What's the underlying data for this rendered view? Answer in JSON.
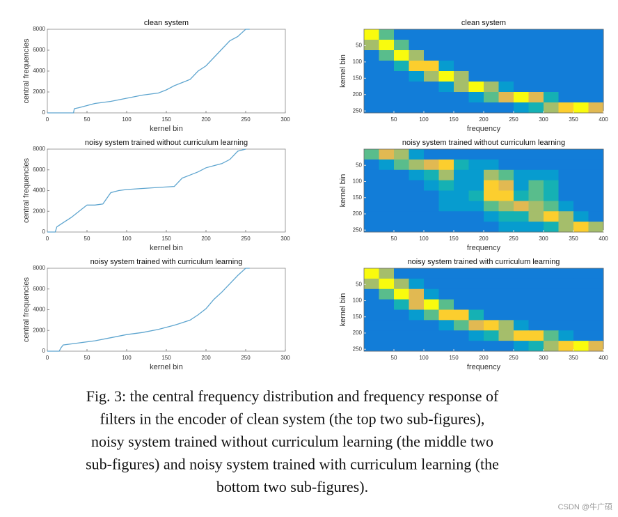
{
  "chart_data": [
    {
      "type": "line",
      "title": "clean system",
      "xlabel": "kernel bin",
      "ylabel": "central frequencies",
      "color": "#5ea5cf",
      "x": [
        0,
        33,
        34,
        40,
        50,
        60,
        80,
        100,
        120,
        140,
        150,
        160,
        170,
        180,
        190,
        200,
        210,
        220,
        230,
        240,
        250,
        255
      ],
      "values": [
        0,
        0,
        400,
        500,
        700,
        900,
        1100,
        1400,
        1700,
        1900,
        2200,
        2600,
        2900,
        3200,
        4000,
        4500,
        5300,
        6100,
        6900,
        7300,
        8000,
        8000
      ],
      "xlim": [
        0,
        300
      ],
      "xticks": [
        0,
        50,
        100,
        150,
        200,
        250,
        300
      ],
      "ylim": [
        0,
        8000
      ],
      "yticks": [
        0,
        2000,
        4000,
        6000,
        8000
      ]
    },
    {
      "type": "heatmap",
      "title": "clean system",
      "xlabel": "frequency",
      "ylabel": "kernel bin",
      "xlim": [
        0,
        400
      ],
      "xticks": [
        50,
        100,
        150,
        200,
        250,
        300,
        350,
        400
      ],
      "ylim": [
        0,
        256
      ],
      "yticks": [
        50,
        100,
        150,
        200,
        250
      ],
      "y_reversed": true,
      "zlim": [
        0,
        9
      ],
      "z": [
        [
          9,
          5,
          2,
          2,
          2,
          2,
          2,
          2,
          2,
          2,
          2,
          2,
          2,
          2,
          2,
          2
        ],
        [
          6,
          9,
          5,
          2,
          2,
          2,
          2,
          2,
          2,
          2,
          2,
          2,
          2,
          2,
          2,
          2
        ],
        [
          2,
          5,
          9,
          6,
          2,
          2,
          2,
          2,
          2,
          2,
          2,
          2,
          2,
          2,
          2,
          2
        ],
        [
          2,
          2,
          4,
          8,
          8,
          3,
          2,
          2,
          2,
          2,
          2,
          2,
          2,
          2,
          2,
          2
        ],
        [
          2,
          2,
          2,
          3,
          6,
          9,
          6,
          2,
          2,
          2,
          2,
          2,
          2,
          2,
          2,
          2
        ],
        [
          2,
          2,
          2,
          2,
          2,
          3,
          6,
          9,
          6,
          3,
          2,
          2,
          2,
          2,
          2,
          2
        ],
        [
          2,
          2,
          2,
          2,
          2,
          2,
          2,
          3,
          5,
          7,
          9,
          7,
          4,
          2,
          2,
          2
        ],
        [
          2,
          2,
          2,
          2,
          2,
          2,
          2,
          2,
          2,
          2,
          3,
          4,
          6,
          8,
          9,
          7
        ]
      ]
    },
    {
      "type": "line",
      "title": "noisy system trained without curriculum learning",
      "xlabel": "kernel bin",
      "ylabel": "central frequencies",
      "color": "#5ea5cf",
      "x": [
        0,
        5,
        10,
        12,
        20,
        30,
        40,
        50,
        60,
        70,
        80,
        90,
        100,
        120,
        140,
        160,
        170,
        180,
        190,
        200,
        210,
        220,
        230,
        240,
        250
      ],
      "values": [
        0,
        0,
        0,
        500,
        900,
        1400,
        2000,
        2600,
        2600,
        2700,
        3800,
        4000,
        4100,
        4200,
        4300,
        4400,
        5200,
        5500,
        5800,
        6200,
        6400,
        6600,
        7000,
        7800,
        8000
      ],
      "xlim": [
        0,
        300
      ],
      "xticks": [
        0,
        50,
        100,
        150,
        200,
        250,
        300
      ],
      "ylim": [
        0,
        8000
      ],
      "yticks": [
        0,
        2000,
        4000,
        6000,
        8000
      ]
    },
    {
      "type": "heatmap",
      "title": "noisy system trained without curriculum learning",
      "xlabel": "frequency",
      "ylabel": "kernel bin",
      "xlim": [
        0,
        400
      ],
      "xticks": [
        50,
        100,
        150,
        200,
        250,
        300,
        350,
        400
      ],
      "ylim": [
        0,
        256
      ],
      "yticks": [
        50,
        100,
        150,
        200,
        250
      ],
      "y_reversed": true,
      "zlim": [
        0,
        9
      ],
      "z": [
        [
          5,
          7,
          6,
          3,
          2,
          2,
          2,
          2,
          2,
          2,
          2,
          2,
          2,
          2,
          2,
          2
        ],
        [
          2,
          3,
          5,
          6,
          7,
          8,
          4,
          3,
          3,
          2,
          2,
          2,
          2,
          2,
          2,
          2
        ],
        [
          2,
          2,
          2,
          3,
          4,
          6,
          3,
          3,
          6,
          5,
          3,
          3,
          3,
          2,
          2,
          2
        ],
        [
          2,
          2,
          2,
          2,
          3,
          4,
          3,
          3,
          8,
          7,
          3,
          5,
          4,
          2,
          2,
          2
        ],
        [
          2,
          2,
          2,
          2,
          2,
          3,
          3,
          4,
          8,
          8,
          4,
          5,
          4,
          2,
          2,
          2
        ],
        [
          2,
          2,
          2,
          2,
          2,
          3,
          3,
          3,
          5,
          6,
          7,
          6,
          5,
          3,
          2,
          2
        ],
        [
          2,
          2,
          2,
          2,
          2,
          2,
          2,
          2,
          3,
          4,
          4,
          6,
          8,
          6,
          3,
          2
        ],
        [
          2,
          2,
          2,
          2,
          2,
          2,
          2,
          2,
          2,
          3,
          3,
          3,
          4,
          6,
          8,
          6
        ]
      ]
    },
    {
      "type": "line",
      "title": "noisy system trained with curriculum learning",
      "xlabel": "kernel bin",
      "ylabel": "central frequencies",
      "color": "#5ea5cf",
      "x": [
        0,
        15,
        17,
        20,
        40,
        60,
        80,
        100,
        120,
        140,
        160,
        180,
        190,
        200,
        210,
        220,
        230,
        240,
        250,
        255
      ],
      "values": [
        0,
        0,
        300,
        600,
        800,
        1000,
        1300,
        1600,
        1800,
        2100,
        2500,
        3000,
        3500,
        4100,
        5000,
        5700,
        6500,
        7300,
        8000,
        8000
      ],
      "xlim": [
        0,
        300
      ],
      "xticks": [
        0,
        50,
        100,
        150,
        200,
        250,
        300
      ],
      "ylim": [
        0,
        8000
      ],
      "yticks": [
        0,
        2000,
        4000,
        6000,
        8000
      ]
    },
    {
      "type": "heatmap",
      "title": "noisy system trained with curriculum learning",
      "xlabel": "frequency",
      "ylabel": "kernel bin",
      "xlim": [
        0,
        400
      ],
      "xticks": [
        50,
        100,
        150,
        200,
        250,
        300,
        350,
        400
      ],
      "ylim": [
        0,
        256
      ],
      "yticks": [
        50,
        100,
        150,
        200,
        250
      ],
      "y_reversed": true,
      "zlim": [
        0,
        9
      ],
      "z": [
        [
          9,
          6,
          2,
          2,
          2,
          2,
          2,
          2,
          2,
          2,
          2,
          2,
          2,
          2,
          2,
          2
        ],
        [
          6,
          9,
          6,
          3,
          2,
          2,
          2,
          2,
          2,
          2,
          2,
          2,
          2,
          2,
          2,
          2
        ],
        [
          2,
          5,
          9,
          7,
          3,
          2,
          2,
          2,
          2,
          2,
          2,
          2,
          2,
          2,
          2,
          2
        ],
        [
          2,
          2,
          4,
          7,
          9,
          5,
          2,
          2,
          2,
          2,
          2,
          2,
          2,
          2,
          2,
          2
        ],
        [
          2,
          2,
          2,
          3,
          5,
          8,
          8,
          4,
          2,
          2,
          2,
          2,
          2,
          2,
          2,
          2
        ],
        [
          2,
          2,
          2,
          2,
          2,
          3,
          5,
          7,
          8,
          6,
          3,
          2,
          2,
          2,
          2,
          2
        ],
        [
          2,
          2,
          2,
          2,
          2,
          2,
          2,
          3,
          4,
          6,
          8,
          8,
          5,
          3,
          2,
          2
        ],
        [
          2,
          2,
          2,
          2,
          2,
          2,
          2,
          2,
          2,
          2,
          3,
          4,
          6,
          8,
          9,
          7
        ]
      ]
    }
  ],
  "caption": [
    "Fig. 3: the central frequency distribution and frequency response of",
    "filters in the encoder of clean system (the top two sub-figures),",
    "noisy system trained without curriculum learning (the middle two",
    "sub-figures) and noisy system trained with curriculum learning (the",
    "bottom two sub-figures)."
  ],
  "watermark": "CSDN @牛广硕"
}
